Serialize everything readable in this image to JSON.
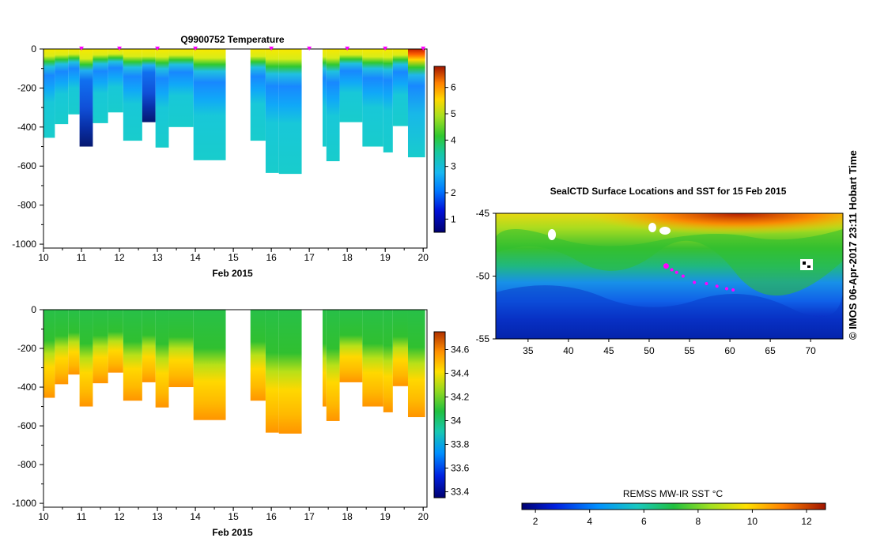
{
  "chart_data": [
    {
      "type": "heatmap",
      "title": "Q9900752  Temperature",
      "xlabel": "Feb 2015",
      "xlim": [
        10,
        20.1
      ],
      "ylim": [
        -1020,
        0
      ],
      "x_ticks": [
        "10",
        "11",
        "12",
        "13",
        "14",
        "15",
        "16",
        "17",
        "18",
        "19",
        "20"
      ],
      "y_ticks": [
        "0",
        "-200",
        "-400",
        "-600",
        "-800",
        "-1000"
      ],
      "profile_markers_day": [
        11.0,
        12.0,
        13.0,
        14.0,
        16.0,
        17.0,
        18.0,
        19.0,
        20.0
      ],
      "colorbar": {
        "min": 0.5,
        "max": 6.8,
        "ticks": [
          "1",
          "2",
          "3",
          "4",
          "5",
          "6"
        ]
      },
      "profiles": [
        {
          "x0": 10.0,
          "x1": 10.3,
          "depth": 455,
          "surf": 4.3
        },
        {
          "x0": 10.3,
          "x1": 10.65,
          "depth": 385,
          "surf": 4.6
        },
        {
          "x0": 10.65,
          "x1": 10.95,
          "depth": 335,
          "surf": 4.6
        },
        {
          "x0": 10.95,
          "x1": 11.3,
          "depth": 500,
          "surf": 4.7
        },
        {
          "x0": 11.3,
          "x1": 11.7,
          "depth": 380,
          "surf": 4.6
        },
        {
          "x0": 11.7,
          "x1": 12.1,
          "depth": 325,
          "surf": 4.6
        },
        {
          "x0": 12.1,
          "x1": 12.6,
          "depth": 470,
          "surf": 4.6
        },
        {
          "x0": 12.6,
          "x1": 12.95,
          "depth": 375,
          "surf": 4.7
        },
        {
          "x0": 12.95,
          "x1": 13.3,
          "depth": 505,
          "surf": 4.7
        },
        {
          "x0": 13.3,
          "x1": 13.95,
          "depth": 400,
          "surf": 4.5
        },
        {
          "x0": 13.95,
          "x1": 14.8,
          "depth": 570,
          "surf": 4.5
        },
        {
          "x0": 15.45,
          "x1": 15.85,
          "depth": 470,
          "surf": 4.6
        },
        {
          "x0": 15.85,
          "x1": 16.2,
          "depth": 635,
          "surf": 4.7
        },
        {
          "x0": 16.2,
          "x1": 16.8,
          "depth": 640,
          "surf": 4.9
        },
        {
          "x0": 17.35,
          "x1": 17.45,
          "depth": 500,
          "surf": 4.7
        },
        {
          "x0": 17.45,
          "x1": 17.8,
          "depth": 575,
          "surf": 4.8
        },
        {
          "x0": 17.8,
          "x1": 18.4,
          "depth": 375,
          "surf": 5.1
        },
        {
          "x0": 18.4,
          "x1": 18.95,
          "depth": 500,
          "surf": 5.3
        },
        {
          "x0": 18.95,
          "x1": 19.2,
          "depth": 530,
          "surf": 5.4
        },
        {
          "x0": 19.2,
          "x1": 19.6,
          "depth": 395,
          "surf": 5.4
        },
        {
          "x0": 19.6,
          "x1": 20.05,
          "depth": 555,
          "surf": 6.3
        }
      ]
    },
    {
      "type": "heatmap",
      "title": "",
      "xlabel": "Feb 2015",
      "xlim": [
        10,
        20.1
      ],
      "ylim": [
        -1020,
        0
      ],
      "x_ticks": [
        "10",
        "11",
        "12",
        "13",
        "14",
        "15",
        "16",
        "17",
        "18",
        "19",
        "20"
      ],
      "y_ticks": [
        "0",
        "-200",
        "-400",
        "-600",
        "-800",
        "-1000"
      ],
      "colorbar": {
        "min": 33.35,
        "max": 34.75,
        "ticks": [
          "33.4",
          "33.6",
          "33.8",
          "34",
          "34.2",
          "34.4",
          "34.6"
        ]
      }
    },
    {
      "type": "heatmap",
      "title": "SealCTD Surface Locations and SST for 15 Feb 2015",
      "xlim": [
        31,
        74
      ],
      "ylim": [
        -55,
        -45
      ],
      "x_ticks": [
        "35",
        "40",
        "45",
        "50",
        "55",
        "60",
        "65",
        "70"
      ],
      "y_ticks": [
        "-45",
        "-50",
        "-55"
      ],
      "colorbar": {
        "label": "REMSS MW-IR SST °C",
        "min": 1.5,
        "max": 12.7,
        "ticks": [
          "2",
          "4",
          "6",
          "8",
          "10",
          "12"
        ]
      },
      "track": [
        {
          "lon": 52.1,
          "lat": -49.2
        },
        {
          "lon": 52.8,
          "lat": -49.5
        },
        {
          "lon": 53.4,
          "lat": -49.7
        },
        {
          "lon": 54.2,
          "lat": -50.0
        },
        {
          "lon": 55.6,
          "lat": -50.5
        },
        {
          "lon": 57.1,
          "lat": -50.6
        },
        {
          "lon": 58.4,
          "lat": -50.8
        },
        {
          "lon": 59.6,
          "lat": -51.0
        },
        {
          "lon": 60.4,
          "lat": -51.1
        }
      ]
    }
  ],
  "side_text": "© IMOS 06-Apr-2017 23:11 Hobart Time",
  "colors": {
    "marker": "#ff00ff"
  }
}
